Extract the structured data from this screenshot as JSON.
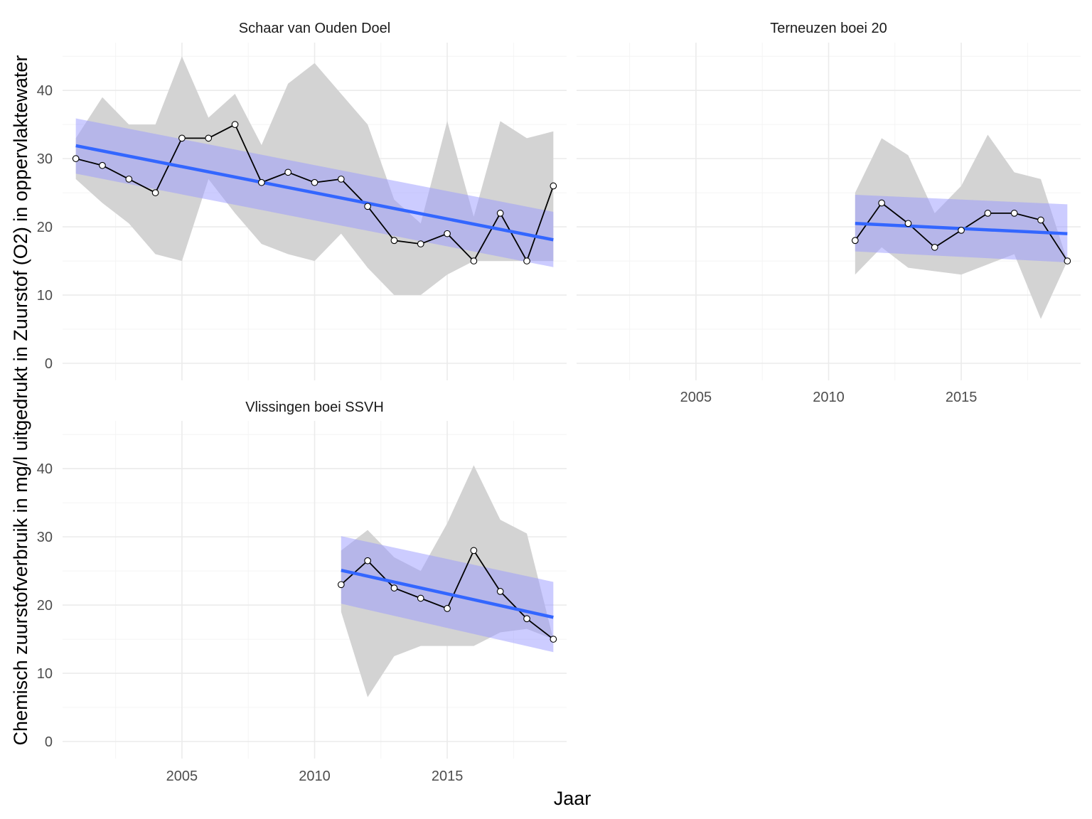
{
  "chart_data": {
    "type": "line",
    "xlabel": "Jaar",
    "ylabel": "Chemisch zuurstofverbruik in mg/l uitgedrukt in Zuurstof (O2) in oppervlaktewater",
    "xlim": [
      2000.5,
      2019.5
    ],
    "ylim": [
      -2.5,
      47
    ],
    "x_ticks": [
      2005,
      2010,
      2015
    ],
    "y_ticks": [
      0,
      10,
      20,
      30,
      40
    ],
    "grid": true,
    "legend": "none",
    "colors": {
      "observed_line": "#000000",
      "point_fill": "#ffffff",
      "range_band": "#d3d3d3",
      "trend_line": "#3366ff",
      "trend_band": "#9999ff"
    },
    "panels": [
      {
        "title": "Schaar van Ouden Doel",
        "x": [
          2001,
          2002,
          2003,
          2004,
          2005,
          2006,
          2007,
          2008,
          2009,
          2010,
          2011,
          2012,
          2013,
          2014,
          2015,
          2016,
          2017,
          2018,
          2019
        ],
        "values": [
          30,
          29,
          27,
          25,
          33,
          33,
          35,
          26.5,
          28,
          26.5,
          27,
          23,
          18,
          17.5,
          19,
          15,
          22,
          15,
          26
        ],
        "range_upper": [
          33,
          39,
          35,
          35,
          45,
          36,
          39.5,
          32,
          41,
          44,
          39.5,
          35,
          24,
          20.5,
          35.5,
          21.5,
          35.5,
          33,
          34
        ],
        "range_lower": [
          27,
          23.5,
          20.5,
          16,
          15,
          27,
          22,
          17.5,
          16,
          15,
          19,
          14,
          10,
          10,
          13,
          15,
          15,
          15,
          15
        ],
        "trend": {
          "x": [
            2001,
            2019
          ],
          "y": [
            31.9,
            18.1
          ],
          "ci_upper": [
            35.9,
            22.2
          ],
          "ci_lower": [
            27.8,
            14.1
          ]
        }
      },
      {
        "title": "Terneuzen boei 20",
        "x": [
          2011,
          2012,
          2013,
          2014,
          2015,
          2016,
          2017,
          2018,
          2019
        ],
        "values": [
          18,
          23.5,
          20.5,
          17,
          19.5,
          22,
          22,
          21,
          15
        ],
        "range_upper": [
          25,
          33,
          30.5,
          22,
          26,
          33.5,
          28,
          27,
          15
        ],
        "range_lower": [
          13,
          17,
          14,
          13.5,
          13,
          14.5,
          16,
          6.5,
          15
        ],
        "trend": {
          "x": [
            2011,
            2019
          ],
          "y": [
            20.5,
            19.0
          ],
          "ci_upper": [
            24.7,
            23.3
          ],
          "ci_lower": [
            16.4,
            14.8
          ]
        }
      },
      {
        "title": "Vlissingen boei SSVH",
        "x": [
          2011,
          2012,
          2013,
          2014,
          2015,
          2016,
          2017,
          2018,
          2019
        ],
        "values": [
          23,
          26.5,
          22.5,
          21,
          19.5,
          28,
          22,
          18,
          15
        ],
        "range_upper": [
          28,
          31,
          27,
          25,
          32,
          40.5,
          32.5,
          30.5,
          15
        ],
        "range_lower": [
          19,
          6.5,
          12.5,
          14,
          14,
          14,
          16,
          16.5,
          15
        ],
        "trend": {
          "x": [
            2011,
            2019
          ],
          "y": [
            25.1,
            18.2
          ],
          "ci_upper": [
            30.1,
            23.4
          ],
          "ci_lower": [
            20.2,
            13.1
          ]
        }
      }
    ]
  }
}
